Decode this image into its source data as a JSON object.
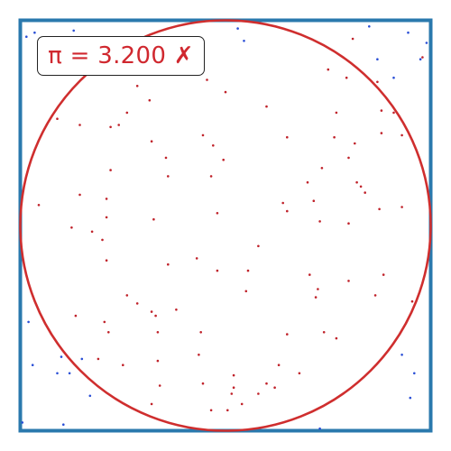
{
  "estimate_label": "π = 3.200 ✗",
  "colors": {
    "square_border": "#2a79ad",
    "circle": "#cf2e2e",
    "inside_point": "#c0222a",
    "outside_point": "#2a4fd6",
    "label_text": "#d0282f"
  },
  "chart_data": {
    "type": "scatter",
    "title": "",
    "xlabel": "",
    "ylabel": "",
    "xlim": [
      -1,
      1
    ],
    "ylim": [
      -1,
      1
    ],
    "grid": false,
    "circle_radius": 1,
    "estimate": 3.2,
    "estimate_correct": false,
    "n_total": 125,
    "n_inside": 100,
    "inside": [
      [
        -0.09,
        0.71
      ],
      [
        0.62,
        0.91
      ],
      [
        0.74,
        0.7
      ],
      [
        0.59,
        0.72
      ],
      [
        -0.26,
        0.82
      ],
      [
        -0.43,
        0.68
      ],
      [
        0.96,
        0.82
      ],
      [
        0.5,
        0.76
      ],
      [
        -0.57,
        0.86
      ],
      [
        0.2,
        0.58
      ],
      [
        0.76,
        0.56
      ],
      [
        -0.48,
        0.55
      ],
      [
        0.3,
        0.43
      ],
      [
        0.54,
        0.55
      ],
      [
        -0.52,
        0.49
      ],
      [
        0.63,
        0.4
      ],
      [
        0.76,
        0.45
      ],
      [
        0.82,
        0.55
      ],
      [
        -0.71,
        0.49
      ],
      [
        -0.37,
        0.61
      ],
      [
        0.0,
        0.65
      ],
      [
        0.86,
        0.44
      ],
      [
        0.6,
        0.33
      ],
      [
        -0.11,
        0.44
      ],
      [
        0.64,
        0.21
      ],
      [
        0.47,
        0.28
      ],
      [
        -0.06,
        0.39
      ],
      [
        0.4,
        0.21
      ],
      [
        -0.56,
        0.48
      ],
      [
        0.53,
        0.43
      ],
      [
        -0.82,
        0.52
      ],
      [
        -0.29,
        0.33
      ],
      [
        -0.01,
        0.32
      ],
      [
        0.66,
        0.19
      ],
      [
        -0.36,
        0.41
      ],
      [
        -0.07,
        0.24
      ],
      [
        -0.56,
        0.27
      ],
      [
        0.11,
        -0.22
      ],
      [
        -0.58,
        0.13
      ],
      [
        -0.91,
        0.1
      ],
      [
        -0.28,
        0.24
      ],
      [
        -0.71,
        0.15
      ],
      [
        0.28,
        0.11
      ],
      [
        0.43,
        0.12
      ],
      [
        0.3,
        0.07
      ],
      [
        0.46,
        0.02
      ],
      [
        -0.58,
        0.04
      ],
      [
        0.75,
        0.08
      ],
      [
        0.68,
        0.16
      ],
      [
        -0.04,
        0.06
      ],
      [
        -0.65,
        -0.03
      ],
      [
        -0.6,
        -0.07
      ],
      [
        -0.35,
        0.03
      ],
      [
        0.6,
        0.01
      ],
      [
        -0.75,
        -0.01
      ],
      [
        0.86,
        0.09
      ],
      [
        -0.04,
        -0.22
      ],
      [
        -0.14,
        -0.16
      ],
      [
        0.16,
        -0.1
      ],
      [
        -0.58,
        -0.17
      ],
      [
        -0.28,
        -0.19
      ],
      [
        -0.24,
        -0.41
      ],
      [
        0.6,
        -0.27
      ],
      [
        0.41,
        -0.24
      ],
      [
        0.45,
        -0.31
      ],
      [
        0.73,
        -0.34
      ],
      [
        -0.73,
        -0.44
      ],
      [
        0.77,
        -0.24
      ],
      [
        0.91,
        -0.37
      ],
      [
        -0.57,
        -0.52
      ],
      [
        -0.43,
        -0.38
      ],
      [
        -0.48,
        -0.34
      ],
      [
        -0.36,
        -0.42
      ],
      [
        -0.59,
        -0.47
      ],
      [
        -0.33,
        -0.52
      ],
      [
        -0.33,
        -0.66
      ],
      [
        -0.32,
        -0.78
      ],
      [
        -0.5,
        -0.68
      ],
      [
        0.2,
        -0.77
      ],
      [
        -0.13,
        -0.63
      ],
      [
        0.04,
        -0.73
      ],
      [
        0.03,
        -0.82
      ],
      [
        -0.11,
        -0.77
      ],
      [
        -0.34,
        -0.44
      ],
      [
        -0.62,
        -0.65
      ],
      [
        0.04,
        -0.79
      ],
      [
        0.26,
        -0.68
      ],
      [
        0.3,
        -0.53
      ],
      [
        -0.36,
        -0.87
      ],
      [
        0.24,
        -0.79
      ],
      [
        0.36,
        -0.72
      ],
      [
        -0.07,
        -0.9
      ],
      [
        -0.12,
        -0.52
      ],
      [
        0.54,
        -0.55
      ],
      [
        0.44,
        -0.35
      ],
      [
        0.48,
        -0.52
      ],
      [
        0.08,
        -0.87
      ],
      [
        0.16,
        -0.82
      ],
      [
        0.1,
        -0.32
      ],
      [
        0.01,
        -0.9
      ]
    ],
    "outside": [
      [
        -0.74,
        0.95
      ],
      [
        0.09,
        0.9
      ],
      [
        0.98,
        0.89
      ],
      [
        0.95,
        0.81
      ],
      [
        -0.96,
        -0.47
      ],
      [
        -0.8,
        -0.64
      ],
      [
        -0.82,
        -0.72
      ],
      [
        -0.76,
        -0.72
      ],
      [
        -0.66,
        -0.83
      ],
      [
        -0.94,
        -0.68
      ],
      [
        -0.79,
        -0.97
      ],
      [
        -0.99,
        -0.96
      ],
      [
        0.46,
        -0.99
      ],
      [
        0.86,
        -0.63
      ],
      [
        0.92,
        -0.72
      ],
      [
        0.9,
        -0.84
      ],
      [
        0.82,
        0.72
      ],
      [
        0.06,
        0.96
      ],
      [
        -0.97,
        0.92
      ],
      [
        -0.87,
        0.89
      ],
      [
        0.7,
        0.97
      ],
      [
        -0.93,
        0.94
      ],
      [
        0.89,
        0.94
      ],
      [
        0.74,
        0.81
      ],
      [
        -0.7,
        -0.65
      ]
    ]
  }
}
